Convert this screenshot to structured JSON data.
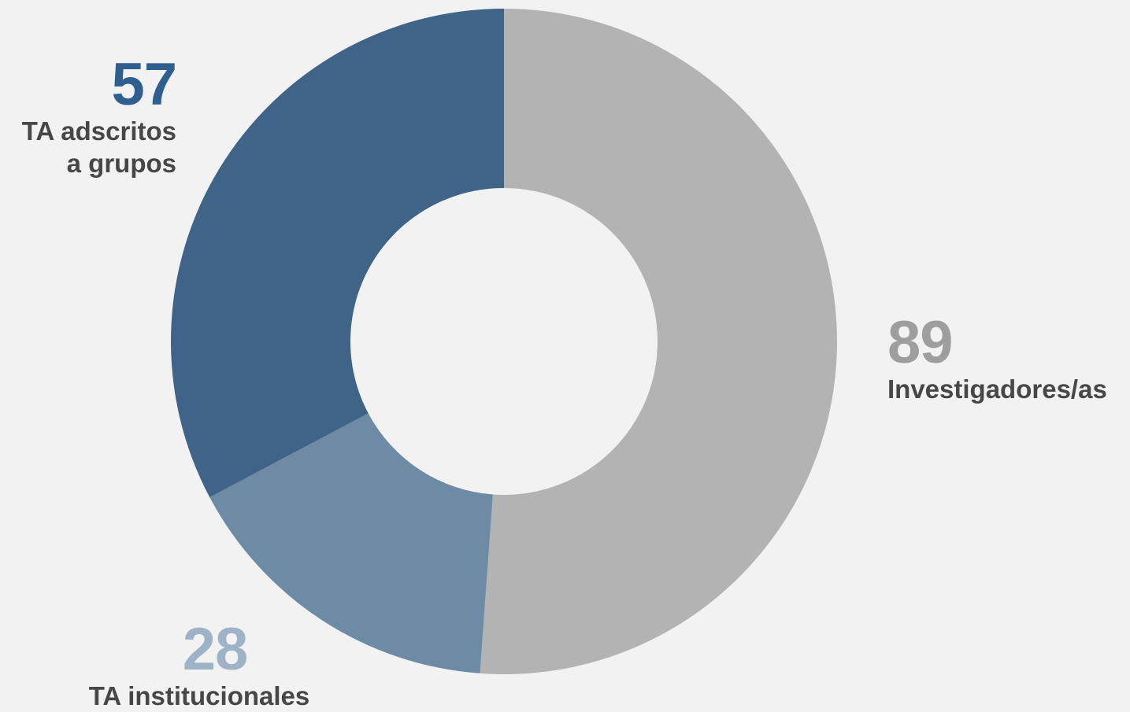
{
  "chart_data": {
    "type": "pie",
    "donut": true,
    "title": "",
    "categories": [
      "Investigadores/as",
      "TA institucionales",
      "TA adscritos a grupos"
    ],
    "values": [
      89,
      28,
      57
    ],
    "colors": [
      "#b3b3b3",
      "#6e8ba6",
      "#3f6488"
    ],
    "value_colors": [
      "#9e9e9e",
      "#9fb3c8",
      "#2e5f8f"
    ],
    "labels": [
      {
        "value": "89",
        "text_lines": [
          "Investigadores/as"
        ]
      },
      {
        "value": "28",
        "text_lines": [
          "TA institucionales"
        ]
      },
      {
        "value": "57",
        "text_lines": [
          "TA adscritos",
          "a grupos"
        ]
      }
    ],
    "legend": "none"
  }
}
